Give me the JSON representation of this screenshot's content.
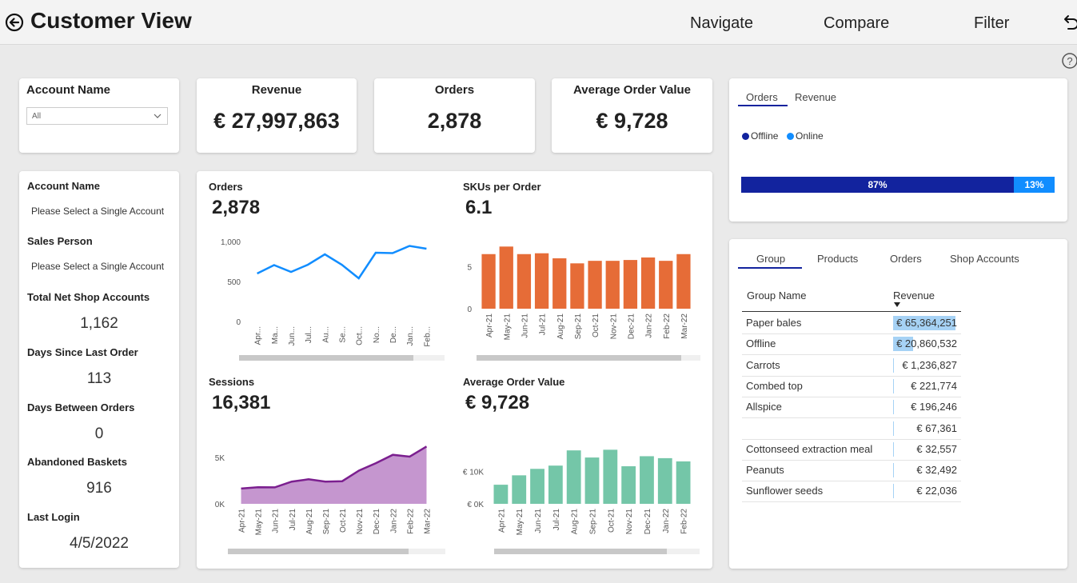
{
  "header": {
    "title": "Customer View",
    "nav": [
      "Navigate",
      "Compare",
      "Filter"
    ]
  },
  "slicer": {
    "label": "Account Name",
    "value": "All"
  },
  "kpis": [
    {
      "label": "Revenue",
      "value": "€ 27,997,863"
    },
    {
      "label": "Orders",
      "value": "2,878"
    },
    {
      "label": "Average Order Value",
      "value": "€ 9,728"
    }
  ],
  "info": {
    "account_name_label": "Account Name",
    "account_name_value": "Please Select a Single Account",
    "sales_person_label": "Sales Person",
    "sales_person_value": "Please Select a Single Account",
    "shop_accounts_label": "Total Net Shop Accounts",
    "shop_accounts_value": "1,162",
    "days_since_label": "Days Since Last Order",
    "days_since_value": "113",
    "days_between_label": "Days Between Orders",
    "days_between_value": "0",
    "abandoned_label": "Abandoned Baskets",
    "abandoned_value": "916",
    "last_login_label": "Last Login",
    "last_login_value": "4/5/2022"
  },
  "split_card": {
    "tabs": [
      "Orders",
      "Revenue"
    ],
    "legend": [
      {
        "name": "Offline",
        "color": "#12239e"
      },
      {
        "name": "Online",
        "color": "#118dff"
      }
    ],
    "bar": [
      {
        "label": "87%",
        "value": 0.87,
        "color": "#12239e"
      },
      {
        "label": "13%",
        "value": 0.13,
        "color": "#118dff"
      }
    ]
  },
  "table_card": {
    "tabs": [
      "Group",
      "Products",
      "Orders",
      "Shop Accounts"
    ],
    "columns": [
      "Group Name",
      "Revenue"
    ],
    "rows": [
      {
        "name": "Paper bales",
        "value": "€ 65,364,251",
        "raw": 65364251
      },
      {
        "name": "Offline",
        "value": "€ 20,860,532",
        "raw": 20860532
      },
      {
        "name": "Carrots",
        "value": "€ 1,236,827",
        "raw": 1236827
      },
      {
        "name": "Combed top",
        "value": "€ 221,774",
        "raw": 221774
      },
      {
        "name": "Allspice",
        "value": "€ 196,246",
        "raw": 196246
      },
      {
        "name": "",
        "value": "€ 67,361",
        "raw": 67361
      },
      {
        "name": "Cottonseed extraction meal",
        "value": "€ 32,557",
        "raw": 32557
      },
      {
        "name": "Peanuts",
        "value": "€ 32,492",
        "raw": 32492
      },
      {
        "name": "Sunflower seeds",
        "value": "€ 22,036",
        "raw": 22036
      }
    ]
  },
  "charts_panel": {
    "orders": {
      "title": "Orders",
      "value": "2,878"
    },
    "skus": {
      "title": "SKUs per Order",
      "value": "6.1"
    },
    "sessions": {
      "title": "Sessions",
      "value": "16,381"
    },
    "aov": {
      "title": "Average Order Value",
      "value": "€ 9,728"
    }
  },
  "chart_data": [
    {
      "type": "line",
      "title": "Orders",
      "x": [
        "Apr...",
        "Ma...",
        "Jun...",
        "Jul...",
        "Au...",
        "Se...",
        "Oct...",
        "No...",
        "De...",
        "Jan...",
        "Feb..."
      ],
      "values": [
        600,
        705,
        620,
        710,
        840,
        710,
        540,
        860,
        855,
        945,
        910
      ],
      "ylim": [
        0,
        1000
      ],
      "yticks": [
        "0",
        "500",
        "1,000"
      ],
      "color": "#118dff"
    },
    {
      "type": "bar",
      "title": "SKUs per Order",
      "categories": [
        "Apr-21",
        "May-21",
        "Jun-21",
        "Jul-21",
        "Aug-21",
        "Sep-21",
        "Oct-21",
        "Nov-21",
        "Dec-21",
        "Jan-22",
        "Feb-22",
        "Mar-22"
      ],
      "values": [
        6.5,
        7.4,
        6.5,
        6.6,
        6.0,
        5.4,
        5.7,
        5.7,
        5.8,
        6.1,
        5.7,
        6.5
      ],
      "ylim": [
        0,
        8
      ],
      "yticks": [
        "0",
        "5"
      ],
      "color": "#e66c37"
    },
    {
      "type": "area",
      "title": "Sessions",
      "x": [
        "Apr-21",
        "May-21",
        "Jun-21",
        "Jul-21",
        "Aug-21",
        "Sep-21",
        "Oct-21",
        "Nov-21",
        "Dec-21",
        "Jan-22",
        "Feb-22",
        "Mar-22"
      ],
      "values": [
        1650,
        1800,
        1780,
        2400,
        2650,
        2400,
        2450,
        3600,
        4400,
        5300,
        5100,
        6200
      ],
      "ylim": [
        0,
        7000
      ],
      "yticks": [
        "0K",
        "5K"
      ],
      "color": "#9c27b0"
    },
    {
      "type": "bar",
      "title": "Average Order Value",
      "categories": [
        "Apr-21",
        "May-21",
        "Jun-21",
        "Jul-21",
        "Aug-21",
        "Sep-21",
        "Oct-21",
        "Nov-21",
        "Dec-21",
        "Jan-22",
        "Feb-22"
      ],
      "values": [
        5900,
        8800,
        10800,
        11800,
        16500,
        14300,
        16700,
        11600,
        14700,
        14100,
        13100
      ],
      "ylim": [
        0,
        20000
      ],
      "yticks": [
        "€ 0K",
        "€ 10K"
      ],
      "color": "#74c6a8"
    }
  ]
}
